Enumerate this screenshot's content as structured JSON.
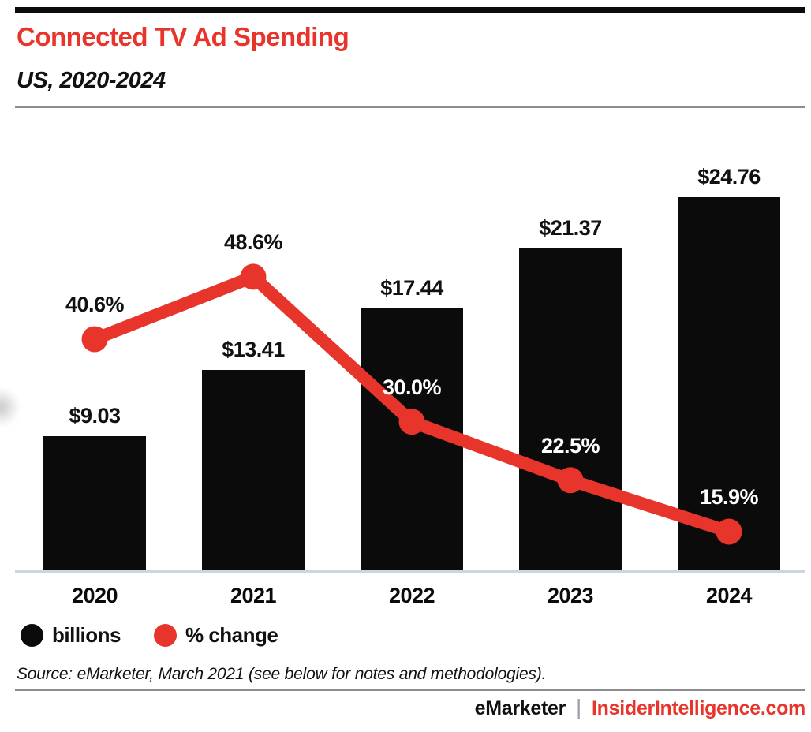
{
  "header": {
    "title": "Connected TV Ad Spending",
    "subtitle": "US, 2020-2024"
  },
  "chart_data": {
    "type": "combo",
    "categories": [
      "2020",
      "2021",
      "2022",
      "2023",
      "2024"
    ],
    "series": [
      {
        "name": "billions",
        "type": "bar",
        "values": [
          9.03,
          13.41,
          17.44,
          21.37,
          24.76
        ],
        "labels": [
          "$9.03",
          "$13.41",
          "$17.44",
          "$21.37",
          "$24.76"
        ],
        "color": "#0b0b0b"
      },
      {
        "name": "% change",
        "type": "line",
        "values": [
          40.6,
          48.6,
          30.0,
          22.5,
          15.9
        ],
        "labels": [
          "40.6%",
          "48.6%",
          "30.0%",
          "22.5%",
          "15.9%"
        ],
        "color": "#e8352c"
      }
    ],
    "legend": [
      {
        "label": "billions",
        "color": "#0b0b0b"
      },
      {
        "label": "% change",
        "color": "#e8352c"
      }
    ],
    "legend_position": "bottom-left",
    "grid": false,
    "data_labels": true,
    "ylim_bar": [
      0,
      26
    ],
    "ylim_line": [
      10,
      55
    ]
  },
  "source": "Source: eMarketer, March 2021 (see below for notes and methodologies).",
  "footer": {
    "brand_left": "eMarketer",
    "separator": "|",
    "brand_right": "InsiderIntelligence.com"
  },
  "colors": {
    "accent_red": "#e8352c",
    "bar_black": "#0b0b0b",
    "axis_line": "#ccd5e0",
    "divider_gray": "#8c8c8c",
    "pct_label_on_bar": "#ffffff",
    "pct_label_on_white": "#111111"
  }
}
